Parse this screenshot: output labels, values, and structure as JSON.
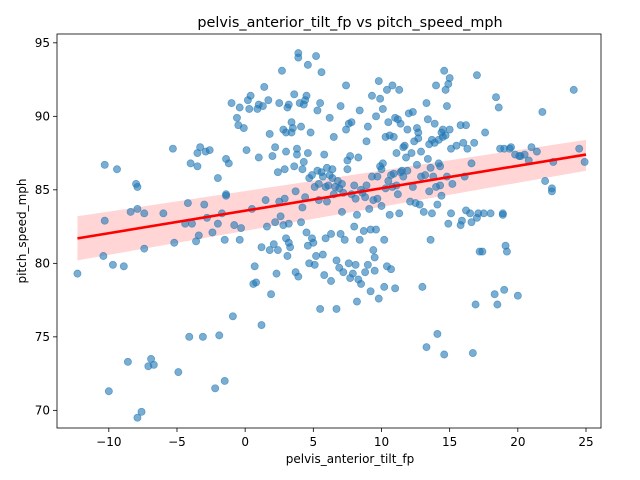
{
  "chart_data": {
    "type": "scatter",
    "title": "pelvis_anterior_tilt_fp vs pitch_speed_mph",
    "xlabel": "pelvis_anterior_tilt_fp",
    "ylabel": "pitch_speed_mph",
    "xlim": [
      -13.8,
      26.1
    ],
    "ylim": [
      68.8,
      95.6
    ],
    "xticks": [
      -10,
      -5,
      0,
      5,
      10,
      15,
      20,
      25
    ],
    "yticks": [
      70,
      75,
      80,
      85,
      90,
      95
    ],
    "grid": false,
    "legend": "none",
    "colors": {
      "points": "#1f77b4",
      "regression_line": "#ff0000",
      "confidence_band": "#ffb3b3"
    },
    "regression": {
      "x": [
        -12.3,
        25.0
      ],
      "y": [
        81.7,
        87.4
      ],
      "ci_upper": [
        83.2,
        88.4
      ],
      "ci_lower": [
        80.2,
        86.3
      ]
    },
    "points": [
      [
        -12.3,
        79.3
      ],
      [
        -10.3,
        86.7
      ],
      [
        -10.3,
        82.9
      ],
      [
        -10.4,
        80.5
      ],
      [
        -10.0,
        71.3
      ],
      [
        -9.7,
        79.9
      ],
      [
        -9.4,
        86.4
      ],
      [
        -8.9,
        79.8
      ],
      [
        -8.6,
        73.3
      ],
      [
        -8.4,
        83.5
      ],
      [
        -8.0,
        85.4
      ],
      [
        -7.9,
        85.2
      ],
      [
        -7.9,
        83.7
      ],
      [
        -7.6,
        69.9
      ],
      [
        -7.9,
        69.5
      ],
      [
        -7.4,
        83.4
      ],
      [
        -7.4,
        81.0
      ],
      [
        -7.1,
        73.0
      ],
      [
        -6.9,
        73.5
      ],
      [
        -6.7,
        73.1
      ],
      [
        -6.0,
        83.4
      ],
      [
        -5.3,
        87.8
      ],
      [
        -5.2,
        81.4
      ],
      [
        -4.9,
        72.6
      ],
      [
        -4.4,
        82.7
      ],
      [
        -4.2,
        84.1
      ],
      [
        -4.1,
        75.0
      ],
      [
        -4.0,
        86.8
      ],
      [
        -3.9,
        82.7
      ],
      [
        -3.6,
        81.5
      ],
      [
        -3.5,
        87.5
      ],
      [
        -3.5,
        86.6
      ],
      [
        -3.4,
        81.9
      ],
      [
        -3.3,
        87.9
      ],
      [
        -3.1,
        75.0
      ],
      [
        -3.0,
        84.0
      ],
      [
        -2.9,
        87.6
      ],
      [
        -2.8,
        83.1
      ],
      [
        -2.6,
        87.7
      ],
      [
        -2.4,
        82.1
      ],
      [
        -2.2,
        71.5
      ],
      [
        -2.0,
        85.8
      ],
      [
        -2.0,
        82.7
      ],
      [
        -1.9,
        75.1
      ],
      [
        -1.7,
        83.4
      ],
      [
        -1.5,
        81.6
      ],
      [
        -1.4,
        87.1
      ],
      [
        -1.4,
        84.7
      ],
      [
        -1.4,
        84.6
      ],
      [
        -1.2,
        86.8
      ],
      [
        -1.5,
        72.0
      ],
      [
        -1.0,
        90.9
      ],
      [
        -0.9,
        76.4
      ],
      [
        -0.8,
        82.6
      ],
      [
        -0.6,
        89.9
      ],
      [
        -0.5,
        89.4
      ],
      [
        -0.4,
        81.6
      ],
      [
        -0.4,
        90.6
      ],
      [
        -0.3,
        82.4
      ],
      [
        -0.1,
        89.2
      ],
      [
        0.1,
        87.7
      ],
      [
        0.2,
        91.1
      ],
      [
        0.3,
        90.5
      ],
      [
        0.4,
        91.4
      ],
      [
        0.5,
        83.7
      ],
      [
        0.6,
        78.6
      ],
      [
        0.7,
        79.8
      ],
      [
        0.8,
        78.7
      ],
      [
        0.9,
        90.5
      ],
      [
        1.0,
        90.8
      ],
      [
        1.0,
        87.2
      ],
      [
        1.2,
        75.8
      ],
      [
        1.2,
        81.1
      ],
      [
        1.4,
        92.0
      ],
      [
        1.3,
        90.7
      ],
      [
        1.5,
        84.3
      ],
      [
        1.6,
        82.5
      ],
      [
        1.7,
        91.1
      ],
      [
        1.8,
        88.8
      ],
      [
        1.8,
        80.9
      ],
      [
        1.9,
        77.9
      ],
      [
        2.0,
        87.3
      ],
      [
        2.1,
        81.3
      ],
      [
        2.2,
        87.9
      ],
      [
        2.2,
        82.8
      ],
      [
        2.3,
        79.3
      ],
      [
        2.4,
        80.9
      ],
      [
        2.4,
        86.2
      ],
      [
        2.5,
        90.9
      ],
      [
        2.5,
        84.2
      ],
      [
        2.6,
        83.2
      ],
      [
        2.7,
        93.1
      ],
      [
        2.8,
        89.1
      ],
      [
        2.8,
        82.6
      ],
      [
        2.9,
        86.4
      ],
      [
        2.9,
        84.4
      ],
      [
        3.0,
        88.9
      ],
      [
        3.0,
        87.6
      ],
      [
        3.0,
        81.7
      ],
      [
        3.1,
        90.6
      ],
      [
        3.1,
        80.5
      ],
      [
        3.2,
        90.8
      ],
      [
        3.2,
        81.4
      ],
      [
        3.2,
        82.7
      ],
      [
        3.3,
        81.1
      ],
      [
        3.4,
        88.9
      ],
      [
        3.4,
        89.6
      ],
      [
        3.5,
        89.2
      ],
      [
        3.6,
        91.5
      ],
      [
        3.6,
        86.6
      ],
      [
        3.7,
        84.9
      ],
      [
        3.7,
        79.4
      ],
      [
        3.8,
        87.4
      ],
      [
        3.8,
        87.8
      ],
      [
        3.9,
        94.3
      ],
      [
        3.9,
        94.0
      ],
      [
        3.9,
        79.1
      ],
      [
        4.0,
        90.9
      ],
      [
        4.1,
        89.3
      ],
      [
        4.1,
        82.8
      ],
      [
        4.2,
        86.4
      ],
      [
        4.2,
        83.8
      ],
      [
        4.3,
        86.9
      ],
      [
        4.3,
        90.8
      ],
      [
        4.4,
        84.5
      ],
      [
        4.4,
        91.1
      ],
      [
        4.5,
        91.4
      ],
      [
        4.5,
        82.1
      ],
      [
        4.6,
        87.5
      ],
      [
        4.6,
        93.5
      ],
      [
        4.6,
        81.2
      ],
      [
        4.7,
        85.8
      ],
      [
        4.7,
        80.0
      ],
      [
        4.8,
        88.9
      ],
      [
        4.9,
        86.0
      ],
      [
        4.9,
        81.7
      ],
      [
        5.0,
        81.4
      ],
      [
        5.1,
        85.2
      ],
      [
        5.1,
        79.9
      ],
      [
        5.2,
        94.1
      ],
      [
        5.2,
        80.5
      ],
      [
        5.3,
        86.3
      ],
      [
        5.3,
        90.4
      ],
      [
        5.4,
        84.3
      ],
      [
        5.4,
        85.4
      ],
      [
        5.5,
        90.9
      ],
      [
        5.5,
        76.9
      ],
      [
        5.6,
        93.0
      ],
      [
        5.6,
        86.2
      ],
      [
        5.7,
        85.9
      ],
      [
        5.7,
        80.6
      ],
      [
        5.8,
        87.4
      ],
      [
        5.8,
        79.2
      ],
      [
        5.9,
        81.7
      ],
      [
        5.9,
        85.2
      ],
      [
        6.0,
        84.2
      ],
      [
        6.0,
        86.5
      ],
      [
        6.1,
        85.3
      ],
      [
        6.2,
        89.9
      ],
      [
        6.2,
        86.0
      ],
      [
        6.3,
        82.0
      ],
      [
        6.3,
        78.8
      ],
      [
        6.4,
        85.8
      ],
      [
        6.4,
        86.4
      ],
      [
        6.5,
        84.7
      ],
      [
        6.5,
        88.6
      ],
      [
        6.6,
        85.2
      ],
      [
        6.7,
        80.2
      ],
      [
        6.7,
        76.9
      ],
      [
        6.8,
        85.6
      ],
      [
        6.9,
        85.1
      ],
      [
        6.9,
        79.7
      ],
      [
        7.0,
        90.7
      ],
      [
        7.0,
        82.0
      ],
      [
        7.1,
        83.5
      ],
      [
        7.1,
        85.4
      ],
      [
        7.2,
        79.4
      ],
      [
        7.2,
        84.8
      ],
      [
        7.3,
        81.6
      ],
      [
        7.4,
        89.1
      ],
      [
        7.4,
        92.1
      ],
      [
        7.5,
        86.4
      ],
      [
        7.5,
        87.0
      ],
      [
        7.6,
        89.5
      ],
      [
        7.6,
        80.0
      ],
      [
        7.7,
        87.3
      ],
      [
        7.7,
        79.0
      ],
      [
        7.8,
        84.7
      ],
      [
        7.8,
        89.6
      ],
      [
        7.9,
        79.3
      ],
      [
        8.0,
        85.3
      ],
      [
        8.0,
        82.5
      ],
      [
        8.1,
        84.4
      ],
      [
        8.1,
        79.9
      ],
      [
        8.2,
        83.3
      ],
      [
        8.2,
        77.4
      ],
      [
        8.3,
        78.9
      ],
      [
        8.3,
        87.2
      ],
      [
        8.4,
        90.4
      ],
      [
        8.4,
        81.6
      ],
      [
        8.5,
        85.0
      ],
      [
        8.5,
        78.6
      ],
      [
        8.6,
        84.8
      ],
      [
        8.7,
        82.2
      ],
      [
        8.8,
        79.4
      ],
      [
        8.8,
        84.5
      ],
      [
        8.9,
        85.3
      ],
      [
        8.9,
        88.3
      ],
      [
        9.0,
        89.3
      ],
      [
        9.0,
        79.9
      ],
      [
        9.1,
        83.7
      ],
      [
        9.2,
        82.3
      ],
      [
        9.2,
        78.1
      ],
      [
        9.3,
        91.4
      ],
      [
        9.3,
        85.9
      ],
      [
        9.4,
        80.9
      ],
      [
        9.4,
        84.3
      ],
      [
        9.5,
        80.4
      ],
      [
        9.5,
        79.5
      ],
      [
        9.6,
        90.0
      ],
      [
        9.6,
        82.3
      ],
      [
        9.7,
        85.9
      ],
      [
        9.7,
        84.4
      ],
      [
        9.8,
        92.4
      ],
      [
        9.8,
        77.6
      ],
      [
        9.9,
        86.6
      ],
      [
        9.9,
        91.2
      ],
      [
        10.0,
        86.4
      ],
      [
        10.0,
        83.9
      ],
      [
        10.1,
        90.5
      ],
      [
        10.1,
        86.8
      ],
      [
        10.2,
        81.6
      ],
      [
        10.2,
        78.4
      ],
      [
        10.3,
        88.6
      ],
      [
        10.3,
        85.1
      ],
      [
        10.4,
        79.8
      ],
      [
        10.4,
        91.8
      ],
      [
        10.5,
        89.6
      ],
      [
        10.5,
        85.6
      ],
      [
        10.6,
        88.7
      ],
      [
        10.6,
        83.3
      ],
      [
        10.7,
        79.6
      ],
      [
        10.7,
        86.0
      ],
      [
        10.8,
        92.1
      ],
      [
        10.8,
        85.2
      ],
      [
        10.9,
        88.6
      ],
      [
        10.9,
        86.1
      ],
      [
        11.0,
        89.9
      ],
      [
        11.0,
        78.3
      ],
      [
        11.1,
        87.5
      ],
      [
        11.1,
        85.3
      ],
      [
        11.2,
        89.8
      ],
      [
        11.2,
        84.7
      ],
      [
        11.3,
        91.8
      ],
      [
        11.3,
        83.4
      ],
      [
        11.4,
        89.5
      ],
      [
        11.4,
        86.2
      ],
      [
        11.5,
        86.3
      ],
      [
        11.6,
        87.9
      ],
      [
        11.6,
        85.9
      ],
      [
        11.7,
        88.0
      ],
      [
        11.8,
        87.2
      ],
      [
        11.9,
        89.1
      ],
      [
        11.9,
        86.3
      ],
      [
        12.0,
        90.2
      ],
      [
        12.1,
        84.2
      ],
      [
        12.2,
        87.5
      ],
      [
        12.3,
        85.2
      ],
      [
        12.3,
        90.3
      ],
      [
        12.4,
        88.3
      ],
      [
        12.5,
        84.1
      ],
      [
        12.6,
        89.2
      ],
      [
        12.6,
        86.7
      ],
      [
        12.7,
        88.9
      ],
      [
        12.7,
        88.5
      ],
      [
        12.8,
        84.0
      ],
      [
        12.9,
        87.6
      ],
      [
        12.9,
        85.9
      ],
      [
        13.0,
        78.4
      ],
      [
        13.1,
        83.5
      ],
      [
        13.2,
        86.0
      ],
      [
        13.3,
        74.3
      ],
      [
        13.3,
        90.9
      ],
      [
        13.4,
        89.8
      ],
      [
        13.4,
        87.1
      ],
      [
        13.5,
        88.1
      ],
      [
        13.5,
        84.9
      ],
      [
        13.6,
        81.6
      ],
      [
        13.6,
        86.5
      ],
      [
        13.7,
        88.4
      ],
      [
        13.7,
        83.4
      ],
      [
        13.8,
        85.9
      ],
      [
        13.9,
        89.5
      ],
      [
        13.9,
        88.2
      ],
      [
        14.0,
        85.2
      ],
      [
        14.0,
        92.1
      ],
      [
        14.1,
        75.2
      ],
      [
        14.1,
        84.0
      ],
      [
        14.2,
        88.4
      ],
      [
        14.2,
        86.8
      ],
      [
        14.3,
        85.3
      ],
      [
        14.3,
        86.6
      ],
      [
        14.4,
        84.6
      ],
      [
        14.4,
        88.9
      ],
      [
        14.5,
        88.6
      ],
      [
        14.5,
        89.1
      ],
      [
        14.6,
        93.1
      ],
      [
        14.6,
        73.8
      ],
      [
        14.7,
        88.7
      ],
      [
        14.7,
        91.8
      ],
      [
        14.8,
        85.9
      ],
      [
        14.8,
        90.7
      ],
      [
        14.9,
        92.2
      ],
      [
        14.9,
        82.7
      ],
      [
        15.0,
        92.6
      ],
      [
        15.0,
        89.1
      ],
      [
        15.1,
        83.4
      ],
      [
        15.1,
        87.8
      ],
      [
        15.2,
        85.4
      ],
      [
        15.5,
        88.0
      ],
      [
        15.8,
        89.4
      ],
      [
        15.8,
        82.6
      ],
      [
        15.9,
        82.9
      ],
      [
        16.0,
        88.2
      ],
      [
        16.1,
        85.9
      ],
      [
        16.2,
        89.4
      ],
      [
        16.2,
        83.6
      ],
      [
        16.3,
        87.8
      ],
      [
        16.5,
        83.4
      ],
      [
        16.6,
        82.8
      ],
      [
        16.6,
        86.8
      ],
      [
        16.7,
        73.9
      ],
      [
        16.8,
        88.2
      ],
      [
        16.9,
        77.2
      ],
      [
        17.0,
        83.1
      ],
      [
        17.0,
        92.8
      ],
      [
        17.1,
        83.4
      ],
      [
        17.2,
        80.8
      ],
      [
        17.4,
        80.8
      ],
      [
        17.5,
        83.4
      ],
      [
        17.6,
        88.9
      ],
      [
        18.0,
        83.4
      ],
      [
        18.3,
        77.9
      ],
      [
        18.4,
        91.3
      ],
      [
        18.5,
        77.2
      ],
      [
        18.6,
        90.6
      ],
      [
        18.7,
        87.8
      ],
      [
        18.9,
        83.4
      ],
      [
        18.9,
        83.3
      ],
      [
        19.0,
        87.8
      ],
      [
        19.0,
        78.2
      ],
      [
        19.1,
        81.2
      ],
      [
        19.2,
        80.8
      ],
      [
        19.4,
        87.8
      ],
      [
        19.5,
        87.9
      ],
      [
        19.8,
        87.4
      ],
      [
        20.0,
        77.8
      ],
      [
        20.1,
        87.3
      ],
      [
        20.2,
        87.3
      ],
      [
        20.5,
        87.4
      ],
      [
        20.8,
        87.0
      ],
      [
        21.0,
        87.9
      ],
      [
        21.4,
        87.6
      ],
      [
        21.8,
        90.3
      ],
      [
        22.0,
        85.6
      ],
      [
        22.5,
        85.1
      ],
      [
        22.5,
        84.9
      ],
      [
        22.6,
        86.9
      ],
      [
        24.1,
        91.8
      ],
      [
        24.5,
        87.8
      ],
      [
        24.9,
        86.9
      ]
    ]
  }
}
